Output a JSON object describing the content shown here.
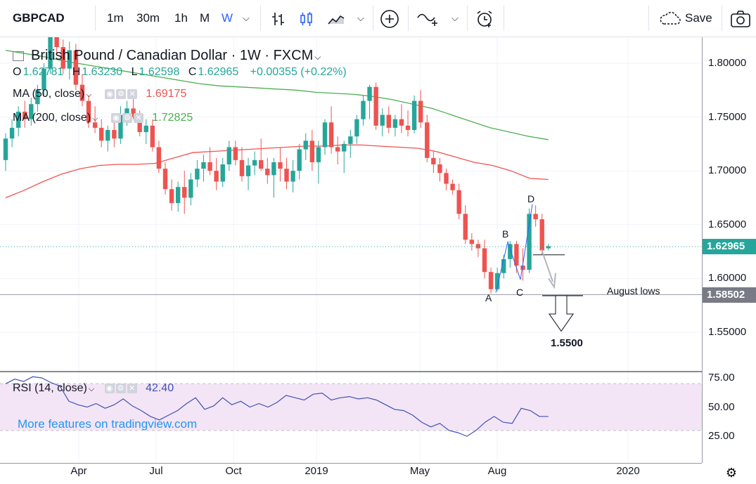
{
  "toolbar": {
    "symbol": "GBPCAD",
    "intervals": [
      "1m",
      "30m",
      "1h",
      "M",
      "W"
    ],
    "active_interval": "W",
    "save_label": "Save"
  },
  "legend": {
    "title": "British Pound / Canadian Dollar · 1W · FXCM",
    "ohlc": {
      "o_label": "O",
      "o": "1.62781",
      "h_label": "H",
      "h": "1.63230",
      "l_label": "L",
      "l": "1.62598",
      "c_label": "C",
      "c": "1.62965",
      "change": "+0.00355 (+0.22%)"
    },
    "ma50": {
      "label": "MA (50, close)",
      "value": "1.69175",
      "color": "#ef5350"
    },
    "ma200": {
      "label": "MA (200, close)",
      "value": "1.72825",
      "color": "#4caf50"
    }
  },
  "rsi_legend": {
    "label": "RSI (14, close)",
    "value": "42.40"
  },
  "watermark": "More features on tradingview.com",
  "price_axis": [
    "1.80000",
    "1.75000",
    "1.70000",
    "1.65000",
    "1.60000",
    "1.55000"
  ],
  "price_tags": {
    "last": "1.62965",
    "august_lows": "1.58502"
  },
  "rsi_axis": [
    "75.00",
    "50.00",
    "25.00"
  ],
  "time_axis": [
    "Apr",
    "Jul",
    "Oct",
    "2019",
    "May",
    "Aug",
    "2020"
  ],
  "annotations": {
    "august_lows": "August lows",
    "target": "1.5500",
    "A": "A",
    "B": "B",
    "C": "C",
    "D": "D"
  },
  "colors": {
    "up": "#26a69a",
    "down": "#ef5350",
    "ma50": "#ef5350",
    "ma200": "#4caf50",
    "rsi": "#3f51b5",
    "rsi_band": "#f3e5f5",
    "accent": "#2962ff"
  },
  "chart_data": {
    "type": "candlestick",
    "symbol": "GBPCAD",
    "interval": "1W",
    "ylim": [
      1.535,
      1.835
    ],
    "candles": [
      [
        1.71,
        1.735,
        1.7,
        1.73
      ],
      [
        1.73,
        1.748,
        1.722,
        1.74
      ],
      [
        1.74,
        1.76,
        1.732,
        1.755
      ],
      [
        1.755,
        1.765,
        1.74,
        1.748
      ],
      [
        1.748,
        1.768,
        1.742,
        1.762
      ],
      [
        1.762,
        1.78,
        1.755,
        1.775
      ],
      [
        1.775,
        1.8,
        1.77,
        1.795
      ],
      [
        1.795,
        1.835,
        1.79,
        1.83
      ],
      [
        1.83,
        1.84,
        1.81,
        1.815
      ],
      [
        1.815,
        1.822,
        1.79,
        1.795
      ],
      [
        1.795,
        1.82,
        1.785,
        1.812
      ],
      [
        1.812,
        1.818,
        1.775,
        1.78
      ],
      [
        1.78,
        1.79,
        1.76,
        1.765
      ],
      [
        1.765,
        1.77,
        1.74,
        1.745
      ],
      [
        1.745,
        1.76,
        1.735,
        1.74
      ],
      [
        1.74,
        1.748,
        1.722,
        1.728
      ],
      [
        1.728,
        1.742,
        1.718,
        1.738
      ],
      [
        1.738,
        1.745,
        1.722,
        1.73
      ],
      [
        1.73,
        1.76,
        1.725,
        1.752
      ],
      [
        1.752,
        1.765,
        1.742,
        1.758
      ],
      [
        1.758,
        1.775,
        1.748,
        1.75
      ],
      [
        1.75,
        1.756,
        1.732,
        1.736
      ],
      [
        1.736,
        1.748,
        1.725,
        1.742
      ],
      [
        1.742,
        1.748,
        1.718,
        1.722
      ],
      [
        1.722,
        1.728,
        1.698,
        1.702
      ],
      [
        1.702,
        1.708,
        1.678,
        1.683
      ],
      [
        1.683,
        1.692,
        1.663,
        1.67
      ],
      [
        1.67,
        1.69,
        1.662,
        1.685
      ],
      [
        1.685,
        1.7,
        1.66,
        1.675
      ],
      [
        1.675,
        1.698,
        1.668,
        1.692
      ],
      [
        1.692,
        1.71,
        1.685,
        1.702
      ],
      [
        1.702,
        1.715,
        1.69,
        1.708
      ],
      [
        1.708,
        1.722,
        1.696,
        1.7
      ],
      [
        1.7,
        1.712,
        1.682,
        1.69
      ],
      [
        1.69,
        1.712,
        1.685,
        1.706
      ],
      [
        1.706,
        1.728,
        1.7,
        1.722
      ],
      [
        1.722,
        1.728,
        1.705,
        1.71
      ],
      [
        1.71,
        1.722,
        1.69,
        1.695
      ],
      [
        1.695,
        1.712,
        1.682,
        1.705
      ],
      [
        1.705,
        1.718,
        1.696,
        1.71
      ],
      [
        1.71,
        1.73,
        1.7,
        1.702
      ],
      [
        1.702,
        1.712,
        1.688,
        1.696
      ],
      [
        1.696,
        1.712,
        1.675,
        1.708
      ],
      [
        1.708,
        1.722,
        1.69,
        1.702
      ],
      [
        1.702,
        1.712,
        1.683,
        1.69
      ],
      [
        1.69,
        1.71,
        1.68,
        1.7
      ],
      [
        1.7,
        1.725,
        1.692,
        1.72
      ],
      [
        1.72,
        1.735,
        1.71,
        1.728
      ],
      [
        1.728,
        1.738,
        1.7,
        1.708
      ],
      [
        1.708,
        1.728,
        1.688,
        1.722
      ],
      [
        1.722,
        1.748,
        1.715,
        1.745
      ],
      [
        1.745,
        1.76,
        1.716,
        1.722
      ],
      [
        1.722,
        1.732,
        1.706,
        1.718
      ],
      [
        1.718,
        1.728,
        1.698,
        1.725
      ],
      [
        1.725,
        1.738,
        1.712,
        1.732
      ],
      [
        1.732,
        1.752,
        1.725,
        1.748
      ],
      [
        1.748,
        1.77,
        1.742,
        1.765
      ],
      [
        1.765,
        1.78,
        1.748,
        1.778
      ],
      [
        1.778,
        1.782,
        1.738,
        1.742
      ],
      [
        1.742,
        1.758,
        1.732,
        1.752
      ],
      [
        1.752,
        1.76,
        1.735,
        1.74
      ],
      [
        1.74,
        1.752,
        1.732,
        1.748
      ],
      [
        1.748,
        1.762,
        1.735,
        1.742
      ],
      [
        1.742,
        1.756,
        1.732,
        1.738
      ],
      [
        1.738,
        1.77,
        1.735,
        1.765
      ],
      [
        1.765,
        1.775,
        1.74,
        1.745
      ],
      [
        1.745,
        1.752,
        1.708,
        1.712
      ],
      [
        1.712,
        1.718,
        1.698,
        1.706
      ],
      [
        1.706,
        1.712,
        1.69,
        1.698
      ],
      [
        1.698,
        1.702,
        1.682,
        1.688
      ],
      [
        1.688,
        1.692,
        1.678,
        1.682
      ],
      [
        1.682,
        1.688,
        1.655,
        1.66
      ],
      [
        1.66,
        1.668,
        1.632,
        1.636
      ],
      [
        1.636,
        1.642,
        1.626,
        1.632
      ],
      [
        1.632,
        1.636,
        1.62,
        1.628
      ],
      [
        1.628,
        1.636,
        1.6,
        1.606
      ],
      [
        1.606,
        1.61,
        1.586,
        1.59
      ],
      [
        1.59,
        1.61,
        1.588,
        1.605
      ],
      [
        1.605,
        1.622,
        1.6,
        1.618
      ],
      [
        1.618,
        1.635,
        1.61,
        1.632
      ],
      [
        1.632,
        1.635,
        1.605,
        1.612
      ],
      [
        1.612,
        1.628,
        1.598,
        1.608
      ],
      [
        1.608,
        1.665,
        1.605,
        1.66
      ],
      [
        1.66,
        1.668,
        1.648,
        1.655
      ],
      [
        1.655,
        1.66,
        1.622,
        1.626
      ],
      [
        1.628,
        1.632,
        1.626,
        1.63
      ]
    ],
    "ma50": [
      1.675,
      1.682,
      1.69,
      1.697,
      1.702,
      1.705,
      1.706,
      1.706,
      1.707,
      1.712,
      1.717,
      1.718,
      1.719,
      1.72,
      1.721,
      1.722,
      1.723,
      1.723,
      1.724,
      1.724,
      1.723,
      1.722,
      1.721,
      1.718,
      1.713,
      1.708,
      1.705,
      1.7,
      1.693,
      1.692
    ],
    "ma200": [
      1.812,
      1.809,
      1.806,
      1.802,
      1.799,
      1.796,
      1.793,
      1.79,
      1.787,
      1.784,
      1.781,
      1.779,
      1.778,
      1.777,
      1.776,
      1.775,
      1.773,
      1.772,
      1.771,
      1.769,
      1.766,
      1.762,
      1.758,
      1.752,
      1.746,
      1.74,
      1.736,
      1.732,
      1.729
    ],
    "rsi": [
      70,
      74,
      72,
      76,
      75,
      71,
      68,
      55,
      52,
      50,
      53,
      49,
      52,
      57,
      51,
      47,
      42,
      39,
      43,
      47,
      53,
      58,
      48,
      51,
      58,
      52,
      55,
      50,
      53,
      50,
      54,
      60,
      58,
      56,
      61,
      62,
      56,
      58,
      59,
      57,
      58,
      56,
      52,
      48,
      47,
      43,
      37,
      33,
      36,
      30,
      28,
      25,
      30,
      37,
      42,
      37,
      36,
      49,
      47,
      42,
      42
    ],
    "rsi_band": [
      30,
      70
    ],
    "rsi_ylim": [
      15,
      83
    ],
    "abcd": {
      "A": 1.587,
      "B": 1.634,
      "C": 1.599,
      "D": 1.669
    },
    "levels": {
      "august_lows": 1.58502,
      "last": 1.62965,
      "target": 1.55
    }
  }
}
